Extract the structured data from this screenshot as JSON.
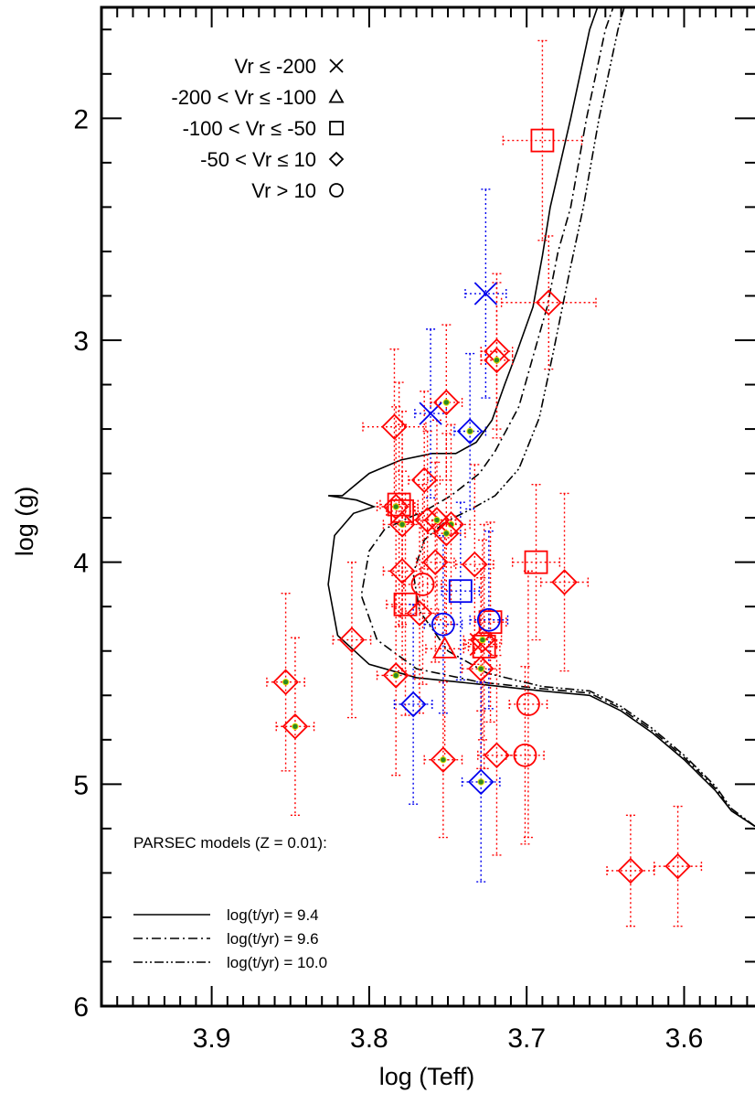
{
  "chart_data": {
    "type": "scatter",
    "xlabel": "log (Teff)",
    "ylabel": "log (g)",
    "xlim": [
      3.97,
      3.555
    ],
    "ylim": [
      6,
      1.5
    ],
    "x_reversed": true,
    "y_reversed": true,
    "x_ticks": [
      3.9,
      3.8,
      3.7,
      3.6
    ],
    "x_tick_labels": [
      "3.9",
      "3.8",
      "3.7",
      "3.6"
    ],
    "y_ticks": [
      2,
      3,
      4,
      5,
      6
    ],
    "y_tick_labels": [
      "2",
      "3",
      "4",
      "5",
      "6"
    ],
    "grid": false,
    "legend_position": "top-left",
    "marker_legend": [
      {
        "label": "Vr ≤ -200",
        "marker": "cross"
      },
      {
        "label": "-200 < Vr ≤ -100",
        "marker": "triangle"
      },
      {
        "label": "-100 < Vr ≤ -50",
        "marker": "square"
      },
      {
        "label": "-50 < Vr ≤ 10",
        "marker": "diamond"
      },
      {
        "label": "Vr > 10",
        "marker": "circle"
      }
    ],
    "models_title": "PARSEC models (Z = 0.01):",
    "model_legend": [
      {
        "label": "log(t/yr) = 9.4",
        "style": "solid"
      },
      {
        "label": "log(t/yr) = 9.6",
        "style": "dash-dot"
      },
      {
        "label": "log(t/yr) = 10.0",
        "style": "dash-dot-dot"
      }
    ],
    "colors": {
      "red": "#ff0000",
      "blue": "#0000ee",
      "green_dot": "#2e8b22"
    },
    "isochrones": [
      {
        "age": 9.4,
        "style": "solid",
        "points": [
          [
            3.555,
            5.19
          ],
          [
            3.57,
            5.12
          ],
          [
            3.58,
            5.03
          ],
          [
            3.6,
            4.89
          ],
          [
            3.62,
            4.77
          ],
          [
            3.64,
            4.67
          ],
          [
            3.66,
            4.6
          ],
          [
            3.69,
            4.58
          ],
          [
            3.73,
            4.55
          ],
          [
            3.77,
            4.52
          ],
          [
            3.8,
            4.46
          ],
          [
            3.82,
            4.33
          ],
          [
            3.826,
            4.1
          ],
          [
            3.822,
            3.88
          ],
          [
            3.81,
            3.78
          ],
          [
            3.797,
            3.75
          ],
          [
            3.808,
            3.72
          ],
          [
            3.826,
            3.7
          ],
          [
            3.817,
            3.7
          ],
          [
            3.8,
            3.6
          ],
          [
            3.78,
            3.54
          ],
          [
            3.76,
            3.51
          ],
          [
            3.745,
            3.51
          ],
          [
            3.732,
            3.46
          ],
          [
            3.722,
            3.36
          ],
          [
            3.714,
            3.2
          ],
          [
            3.706,
            3.05
          ],
          [
            3.696,
            2.85
          ],
          [
            3.69,
            2.62
          ],
          [
            3.685,
            2.4
          ],
          [
            3.672,
            2.0
          ],
          [
            3.66,
            1.6
          ],
          [
            3.655,
            1.5
          ]
        ]
      },
      {
        "age": 9.6,
        "style": "dash-dot",
        "points": [
          [
            3.555,
            5.19
          ],
          [
            3.57,
            5.12
          ],
          [
            3.58,
            5.02
          ],
          [
            3.6,
            4.88
          ],
          [
            3.62,
            4.76
          ],
          [
            3.64,
            4.66
          ],
          [
            3.66,
            4.59
          ],
          [
            3.69,
            4.57
          ],
          [
            3.73,
            4.54
          ],
          [
            3.77,
            4.48
          ],
          [
            3.795,
            4.35
          ],
          [
            3.805,
            4.15
          ],
          [
            3.8,
            3.95
          ],
          [
            3.79,
            3.85
          ],
          [
            3.775,
            3.8
          ],
          [
            3.765,
            3.77
          ],
          [
            3.748,
            3.7
          ],
          [
            3.73,
            3.6
          ],
          [
            3.72,
            3.5
          ],
          [
            3.705,
            3.3
          ],
          [
            3.695,
            3.05
          ],
          [
            3.687,
            2.85
          ],
          [
            3.68,
            2.6
          ],
          [
            3.672,
            2.4
          ],
          [
            3.662,
            2.0
          ],
          [
            3.65,
            1.6
          ],
          [
            3.645,
            1.5
          ]
        ]
      },
      {
        "age": 10.0,
        "style": "dash-dot-dot",
        "points": [
          [
            3.555,
            5.19
          ],
          [
            3.57,
            5.11
          ],
          [
            3.58,
            5.01
          ],
          [
            3.6,
            4.87
          ],
          [
            3.62,
            4.75
          ],
          [
            3.64,
            4.65
          ],
          [
            3.66,
            4.58
          ],
          [
            3.69,
            4.56
          ],
          [
            3.725,
            4.5
          ],
          [
            3.75,
            4.4
          ],
          [
            3.768,
            4.22
          ],
          [
            3.772,
            4.05
          ],
          [
            3.765,
            3.9
          ],
          [
            3.752,
            3.82
          ],
          [
            3.735,
            3.76
          ],
          [
            3.72,
            3.7
          ],
          [
            3.705,
            3.58
          ],
          [
            3.692,
            3.35
          ],
          [
            3.683,
            3.05
          ],
          [
            3.673,
            2.7
          ],
          [
            3.664,
            2.4
          ],
          [
            3.654,
            2.0
          ],
          [
            3.642,
            1.6
          ],
          [
            3.638,
            1.5
          ]
        ]
      }
    ],
    "stars": [
      {
        "teff": 3.726,
        "logg": 2.79,
        "color": "blue",
        "marker": "cross",
        "xerr": 0.013,
        "yerr": 0.47,
        "green_dot": false
      },
      {
        "teff": 3.761,
        "logg": 3.33,
        "color": "blue",
        "marker": "cross",
        "xerr": 0.01,
        "yerr": 0.38,
        "green_dot": false
      },
      {
        "teff": 3.729,
        "logg": 4.37,
        "color": "red",
        "marker": "cross",
        "xerr": 0.01,
        "yerr": 0.3,
        "green_dot": false
      },
      {
        "teff": 3.752,
        "logg": 4.39,
        "color": "red",
        "marker": "triangle",
        "xerr": 0.012,
        "yerr": 0.5,
        "green_dot": false
      },
      {
        "teff": 3.69,
        "logg": 2.1,
        "color": "red",
        "marker": "square",
        "xerr": 0.025,
        "yerr": 0.45,
        "green_dot": false
      },
      {
        "teff": 3.781,
        "logg": 3.74,
        "color": "red",
        "marker": "square",
        "xerr": 0.012,
        "yerr": 0.55,
        "green_dot": false
      },
      {
        "teff": 3.779,
        "logg": 3.77,
        "color": "red",
        "marker": "square",
        "xerr": 0.01,
        "yerr": 0.45,
        "green_dot": false
      },
      {
        "teff": 3.694,
        "logg": 4.0,
        "color": "red",
        "marker": "square",
        "xerr": 0.015,
        "yerr": 0.35,
        "green_dot": false
      },
      {
        "teff": 3.777,
        "logg": 4.19,
        "color": "red",
        "marker": "square",
        "xerr": 0.012,
        "yerr": 0.5,
        "green_dot": false
      },
      {
        "teff": 3.742,
        "logg": 4.13,
        "color": "blue",
        "marker": "square",
        "xerr": 0.012,
        "yerr": 0.4,
        "green_dot": false
      },
      {
        "teff": 3.723,
        "logg": 4.27,
        "color": "red",
        "marker": "square",
        "xerr": 0.01,
        "yerr": 0.45,
        "green_dot": false
      },
      {
        "teff": 3.727,
        "logg": 4.38,
        "color": "red",
        "marker": "square",
        "xerr": 0.01,
        "yerr": 0.55,
        "green_dot": false
      },
      {
        "teff": 3.686,
        "logg": 2.83,
        "color": "red",
        "marker": "diamond",
        "xerr": 0.03,
        "yerr": 0.3,
        "green_dot": false
      },
      {
        "teff": 3.719,
        "logg": 3.05,
        "color": "red",
        "marker": "diamond",
        "xerr": 0.01,
        "yerr": 0.35,
        "green_dot": false
      },
      {
        "teff": 3.719,
        "logg": 3.09,
        "color": "red",
        "marker": "diamond",
        "xerr": 0.01,
        "yerr": 0.35,
        "green_dot": true
      },
      {
        "teff": 3.751,
        "logg": 3.28,
        "color": "red",
        "marker": "diamond",
        "xerr": 0.01,
        "yerr": 0.35,
        "green_dot": true
      },
      {
        "teff": 3.736,
        "logg": 3.41,
        "color": "blue",
        "marker": "diamond",
        "xerr": 0.01,
        "yerr": 0.35,
        "green_dot": true
      },
      {
        "teff": 3.784,
        "logg": 3.39,
        "color": "red",
        "marker": "diamond",
        "xerr": 0.02,
        "yerr": 0.35,
        "green_dot": false
      },
      {
        "teff": 3.765,
        "logg": 3.63,
        "color": "red",
        "marker": "diamond",
        "xerr": 0.01,
        "yerr": 0.4,
        "green_dot": false
      },
      {
        "teff": 3.783,
        "logg": 3.75,
        "color": "red",
        "marker": "diamond",
        "xerr": 0.012,
        "yerr": 0.45,
        "green_dot": true
      },
      {
        "teff": 3.779,
        "logg": 3.83,
        "color": "red",
        "marker": "diamond",
        "xerr": 0.012,
        "yerr": 0.45,
        "green_dot": true
      },
      {
        "teff": 3.763,
        "logg": 3.81,
        "color": "red",
        "marker": "diamond",
        "xerr": 0.012,
        "yerr": 0.4,
        "green_dot": false
      },
      {
        "teff": 3.757,
        "logg": 3.81,
        "color": "red",
        "marker": "diamond",
        "xerr": 0.012,
        "yerr": 0.45,
        "green_dot": true
      },
      {
        "teff": 3.748,
        "logg": 3.83,
        "color": "red",
        "marker": "diamond",
        "xerr": 0.012,
        "yerr": 0.45,
        "green_dot": true
      },
      {
        "teff": 3.751,
        "logg": 3.87,
        "color": "red",
        "marker": "diamond",
        "xerr": 0.012,
        "yerr": 0.45,
        "green_dot": true
      },
      {
        "teff": 3.758,
        "logg": 4.0,
        "color": "red",
        "marker": "diamond",
        "xerr": 0.012,
        "yerr": 0.45,
        "green_dot": false
      },
      {
        "teff": 3.779,
        "logg": 4.04,
        "color": "red",
        "marker": "diamond",
        "xerr": 0.012,
        "yerr": 0.45,
        "green_dot": false
      },
      {
        "teff": 3.733,
        "logg": 4.01,
        "color": "red",
        "marker": "diamond",
        "xerr": 0.012,
        "yerr": 0.45,
        "green_dot": false
      },
      {
        "teff": 3.768,
        "logg": 4.23,
        "color": "red",
        "marker": "diamond",
        "xerr": 0.012,
        "yerr": 0.45,
        "green_dot": false
      },
      {
        "teff": 3.811,
        "logg": 4.35,
        "color": "red",
        "marker": "diamond",
        "xerr": 0.012,
        "yerr": 0.35,
        "green_dot": false
      },
      {
        "teff": 3.728,
        "logg": 4.35,
        "color": "red",
        "marker": "diamond",
        "xerr": 0.012,
        "yerr": 0.45,
        "green_dot": true
      },
      {
        "teff": 3.729,
        "logg": 4.48,
        "color": "red",
        "marker": "diamond",
        "xerr": 0.012,
        "yerr": 0.45,
        "green_dot": true
      },
      {
        "teff": 3.853,
        "logg": 4.54,
        "color": "red",
        "marker": "diamond",
        "xerr": 0.012,
        "yerr": 0.4,
        "green_dot": true
      },
      {
        "teff": 3.847,
        "logg": 4.74,
        "color": "red",
        "marker": "diamond",
        "xerr": 0.012,
        "yerr": 0.4,
        "green_dot": true
      },
      {
        "teff": 3.783,
        "logg": 4.51,
        "color": "red",
        "marker": "diamond",
        "xerr": 0.012,
        "yerr": 0.45,
        "green_dot": true
      },
      {
        "teff": 3.772,
        "logg": 4.64,
        "color": "blue",
        "marker": "diamond",
        "xerr": 0.012,
        "yerr": 0.45,
        "green_dot": false
      },
      {
        "teff": 3.676,
        "logg": 4.09,
        "color": "red",
        "marker": "diamond",
        "xerr": 0.015,
        "yerr": 0.4,
        "green_dot": false
      },
      {
        "teff": 3.753,
        "logg": 4.89,
        "color": "red",
        "marker": "diamond",
        "xerr": 0.012,
        "yerr": 0.35,
        "green_dot": true
      },
      {
        "teff": 3.719,
        "logg": 4.87,
        "color": "red",
        "marker": "diamond",
        "xerr": 0.012,
        "yerr": 0.45,
        "green_dot": false
      },
      {
        "teff": 3.729,
        "logg": 4.99,
        "color": "blue",
        "marker": "diamond",
        "xerr": 0.012,
        "yerr": 0.45,
        "green_dot": true
      },
      {
        "teff": 3.634,
        "logg": 5.39,
        "color": "red",
        "marker": "diamond",
        "xerr": 0.015,
        "yerr": 0.25,
        "green_dot": false
      },
      {
        "teff": 3.604,
        "logg": 5.37,
        "color": "red",
        "marker": "diamond",
        "xerr": 0.015,
        "yerr": 0.27,
        "green_dot": false
      },
      {
        "teff": 3.766,
        "logg": 4.1,
        "color": "red",
        "marker": "circle",
        "xerr": 0.012,
        "yerr": 0.45,
        "green_dot": false
      },
      {
        "teff": 3.753,
        "logg": 4.28,
        "color": "blue",
        "marker": "circle",
        "xerr": 0.012,
        "yerr": 0.4,
        "green_dot": false
      },
      {
        "teff": 3.724,
        "logg": 4.26,
        "color": "blue",
        "marker": "circle",
        "xerr": 0.012,
        "yerr": 0.4,
        "green_dot": false
      },
      {
        "teff": 3.699,
        "logg": 4.64,
        "color": "red",
        "marker": "circle",
        "xerr": 0.012,
        "yerr": 0.6,
        "green_dot": false
      },
      {
        "teff": 3.701,
        "logg": 4.87,
        "color": "red",
        "marker": "circle",
        "xerr": 0.012,
        "yerr": 0.4,
        "green_dot": false
      }
    ]
  }
}
